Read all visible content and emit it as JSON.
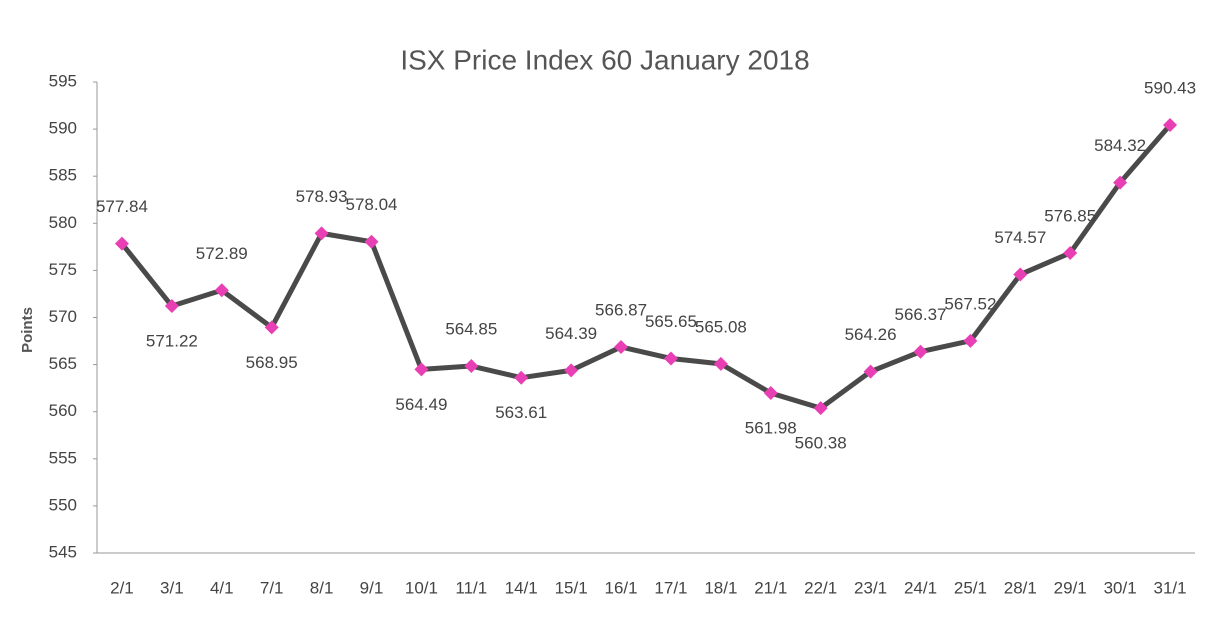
{
  "chart_data": {
    "type": "line",
    "title": "ISX Price Index 60  January 2018",
    "y_label": "Points",
    "categories": [
      "2/1",
      "3/1",
      "4/1",
      "7/1",
      "8/1",
      "9/1",
      "10/1",
      "11/1",
      "14/1",
      "15/1",
      "16/1",
      "17/1",
      "18/1",
      "21/1",
      "22/1",
      "23/1",
      "24/1",
      "25/1",
      "28/1",
      "29/1",
      "30/1",
      "31/1"
    ],
    "series": [
      {
        "name": "ISX Price Index 60",
        "color": "#4a4a4a",
        "marker_color": "#e83fb5",
        "values": [
          577.84,
          571.22,
          572.89,
          568.95,
          578.93,
          578.04,
          564.49,
          564.85,
          563.61,
          564.39,
          566.87,
          565.65,
          565.08,
          561.98,
          560.38,
          564.26,
          566.37,
          567.52,
          574.57,
          576.85,
          584.32,
          590.43
        ]
      }
    ],
    "ylim": [
      545,
      595
    ],
    "yticks": [
      545,
      550,
      555,
      560,
      565,
      570,
      575,
      580,
      585,
      590,
      595
    ],
    "grid": false,
    "legend": false
  }
}
